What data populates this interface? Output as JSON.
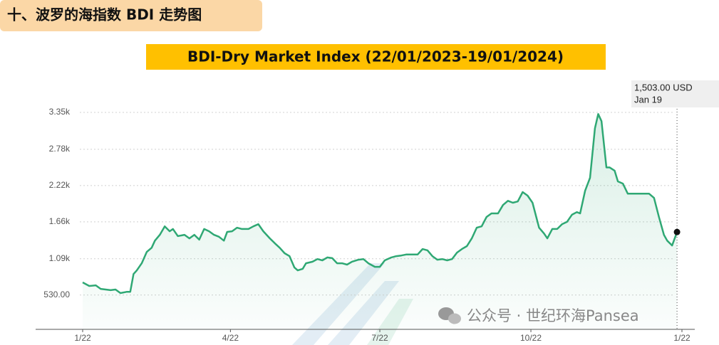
{
  "header": {
    "section_title": "十、波罗的海指数 BDI 走势图"
  },
  "chart_data": {
    "type": "area-line",
    "title": "BDI-Dry Market Index (22/01/2023-19/01/2024)",
    "x": [
      "2023-01-22",
      "2023-01-26",
      "2023-01-30",
      "2023-02-02",
      "2023-02-08",
      "2023-02-11",
      "2023-02-14",
      "2023-02-18",
      "2023-02-20",
      "2023-02-22",
      "2023-02-24",
      "2023-02-27",
      "2023-03-02",
      "2023-03-05",
      "2023-03-07",
      "2023-03-10",
      "2023-03-13",
      "2023-03-16",
      "2023-03-18",
      "2023-03-21",
      "2023-03-25",
      "2023-03-28",
      "2023-03-31",
      "2023-04-03",
      "2023-04-06",
      "2023-04-09",
      "2023-04-12",
      "2023-04-15",
      "2023-04-18",
      "2023-04-20",
      "2023-04-23",
      "2023-04-26",
      "2023-04-29",
      "2023-05-03",
      "2023-05-06",
      "2023-05-09",
      "2023-05-12",
      "2023-05-16",
      "2023-05-19",
      "2023-05-22",
      "2023-05-25",
      "2023-05-28",
      "2023-05-31",
      "2023-06-02",
      "2023-06-05",
      "2023-06-07",
      "2023-06-11",
      "2023-06-14",
      "2023-06-17",
      "2023-06-20",
      "2023-06-23",
      "2023-06-26",
      "2023-06-29",
      "2023-07-02",
      "2023-07-05",
      "2023-07-09",
      "2023-07-12",
      "2023-07-15",
      "2023-07-19",
      "2023-07-22",
      "2023-07-25",
      "2023-07-29",
      "2023-08-01",
      "2023-08-04",
      "2023-08-07",
      "2023-08-11",
      "2023-08-14",
      "2023-08-17",
      "2023-08-20",
      "2023-08-23",
      "2023-08-26",
      "2023-08-29",
      "2023-09-01",
      "2023-09-04",
      "2023-09-07",
      "2023-09-10",
      "2023-09-13",
      "2023-09-16",
      "2023-09-19",
      "2023-09-22",
      "2023-09-25",
      "2023-09-28",
      "2023-10-02",
      "2023-10-05",
      "2023-10-08",
      "2023-10-11",
      "2023-10-14",
      "2023-10-17",
      "2023-10-20",
      "2023-10-23",
      "2023-10-27",
      "2023-10-30",
      "2023-11-01",
      "2023-11-04",
      "2023-11-07",
      "2023-11-10",
      "2023-11-13",
      "2023-11-16",
      "2023-11-19",
      "2023-11-21",
      "2023-11-24",
      "2023-11-27",
      "2023-11-30",
      "2023-12-02",
      "2023-12-04",
      "2023-12-07",
      "2023-12-09",
      "2023-12-12",
      "2023-12-14",
      "2023-12-17",
      "2023-12-20",
      "2023-12-24",
      "2023-12-27",
      "2023-12-30",
      "2024-01-02",
      "2024-01-05",
      "2024-01-08",
      "2024-01-11",
      "2024-01-13",
      "2024-01-16",
      "2024-01-19"
    ],
    "values": [
      725,
      670,
      680,
      625,
      605,
      615,
      560,
      580,
      580,
      855,
      910,
      1020,
      1195,
      1260,
      1370,
      1460,
      1590,
      1515,
      1550,
      1440,
      1460,
      1405,
      1460,
      1385,
      1550,
      1515,
      1460,
      1430,
      1370,
      1505,
      1515,
      1570,
      1550,
      1550,
      1590,
      1625,
      1515,
      1405,
      1330,
      1260,
      1175,
      1130,
      955,
      910,
      935,
      1020,
      1045,
      1085,
      1065,
      1110,
      1100,
      1020,
      1020,
      1000,
      1045,
      1075,
      1085,
      1020,
      965,
      965,
      1065,
      1110,
      1130,
      1140,
      1155,
      1155,
      1155,
      1240,
      1220,
      1130,
      1075,
      1085,
      1065,
      1085,
      1185,
      1240,
      1285,
      1405,
      1570,
      1590,
      1735,
      1790,
      1790,
      1920,
      1985,
      1955,
      1975,
      2120,
      2065,
      1955,
      1570,
      1480,
      1405,
      1550,
      1550,
      1625,
      1660,
      1770,
      1810,
      1790,
      2140,
      2340,
      3105,
      3325,
      3215,
      2500,
      2500,
      2450,
      2285,
      2250,
      2095,
      2095,
      2095,
      2095,
      2095,
      2030,
      1735,
      1460,
      1370,
      1295,
      1503
    ],
    "color": "#2fa874",
    "xlim": [
      "2023-01-22",
      "2024-01-22"
    ],
    "xticks": [
      {
        "value": "2023-01-22",
        "label": "1/22"
      },
      {
        "value": "2023-04-22",
        "label": "4/22"
      },
      {
        "value": "2023-07-22",
        "label": "7/22"
      },
      {
        "value": "2023-10-22",
        "label": "10/22"
      },
      {
        "value": "2024-01-22",
        "label": "1/22"
      }
    ],
    "ylim": [
      0,
      3350
    ],
    "yticks": [
      {
        "value": 530,
        "label": "530.00"
      },
      {
        "value": 1090,
        "label": "1.09k"
      },
      {
        "value": 1660,
        "label": "1.66k"
      },
      {
        "value": 2220,
        "label": "2.22k"
      },
      {
        "value": 2780,
        "label": "2.78k"
      },
      {
        "value": 3350,
        "label": "3.35k"
      }
    ],
    "grid": true,
    "tooltip": {
      "value_label": "1,503.00 USD",
      "date_label": "Jan 19"
    }
  },
  "watermark": "公众号 · 世纪环海Pansea"
}
